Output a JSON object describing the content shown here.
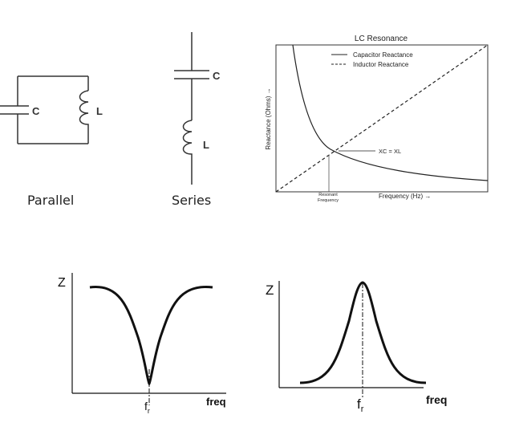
{
  "parallel_circuit": {
    "cap_label": "C",
    "ind_label": "L",
    "caption": "Parallel"
  },
  "series_circuit": {
    "cap_label": "C",
    "ind_label": "L",
    "caption": "Series"
  },
  "lc_chart": {
    "title": "LC Resonance",
    "legend": [
      "Capacitor Reactance",
      "Inductor Reactance"
    ],
    "ylabel": "Reactance (Ohms) →",
    "xlabel": "Frequency (Hz) →",
    "annotation": "XC = XL",
    "resonant_label_1": "Resonant",
    "resonant_label_2": "Frequency"
  },
  "series_impedance_plot": {
    "ylabel": "Z",
    "xlabel": "freq",
    "marker": "f",
    "marker_sub": "r"
  },
  "parallel_impedance_plot": {
    "ylabel": "Z",
    "xlabel": "freq",
    "marker": "f",
    "marker_sub": "r"
  }
}
